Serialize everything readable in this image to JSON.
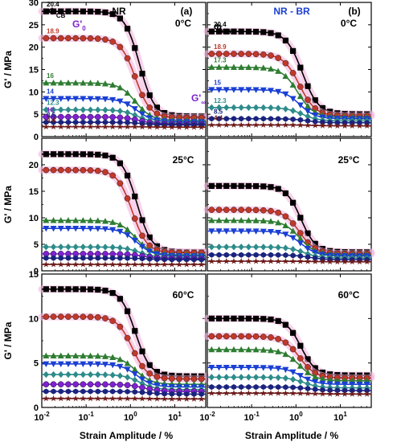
{
  "figure": {
    "y_axis_label": "G' / MPa",
    "x_axis_label": "Strain Amplitude / %",
    "column_titles": [
      "NR",
      "NR - BR"
    ],
    "panel_letters": [
      "(a)",
      "(b)"
    ],
    "phi_label": "Φ",
    "phi_sub": "CB",
    "g0_label": "G'",
    "g0_sub": "0",
    "ginf_label": "G'",
    "ginf_sub": "∞"
  },
  "chart_data": [
    {
      "type": "scatter",
      "panel": "NR 0°C",
      "temperature": "0°C",
      "x_scale": "log",
      "xlim": [
        0.01,
        50
      ],
      "ylim": [
        0,
        30
      ],
      "xticks": [
        "10-2",
        "10-1",
        "100",
        "101"
      ],
      "yticks": [
        0,
        5,
        10,
        15,
        20,
        25,
        30
      ],
      "series": [
        {
          "name": "20.4",
          "marker": "square",
          "color": "#000000",
          "g0": 28,
          "ginf": 4.5,
          "gc": 1.6,
          "m": 1.3
        },
        {
          "name": "18.9",
          "marker": "circle",
          "color": "#c0392b",
          "g0": 22,
          "ginf": 4.2,
          "gc": 1.3,
          "m": 1.3
        },
        {
          "name": "16",
          "marker": "triangle",
          "color": "#2e7d32",
          "g0": 12,
          "ginf": 3.6,
          "gc": 1.3,
          "m": 1.2
        },
        {
          "name": "14",
          "marker": "tri-down",
          "color": "#1a3fd4",
          "g0": 8.5,
          "ginf": 3.3,
          "gc": 1.4,
          "m": 1.2
        },
        {
          "name": "12.3",
          "marker": "diamond",
          "color": "#2e8b8b",
          "g0": 6,
          "ginf": 3.0,
          "gc": 1.5,
          "m": 1.2
        },
        {
          "name": "10",
          "marker": "circle",
          "color": "#7e22ce",
          "g0": 4.4,
          "ginf": 2.8,
          "gc": 1.6,
          "m": 1.2
        },
        {
          "name": "8.5",
          "marker": "hexagon",
          "color": "#1a237e",
          "g0": 3.2,
          "ginf": 2.6,
          "gc": 2.0,
          "m": 1.2
        },
        {
          "name": "4.4",
          "marker": "star",
          "color": "#6d1b1b",
          "g0": 2.2,
          "ginf": 2.1,
          "gc": 3.0,
          "m": 1.2
        }
      ]
    },
    {
      "type": "scatter",
      "panel": "NR-BR 0°C",
      "temperature": "0°C",
      "x_scale": "log",
      "xlim": [
        0.01,
        50
      ],
      "ylim": [
        0,
        30
      ],
      "xticks": [
        "10-2",
        "10-1",
        "100",
        "101"
      ],
      "yticks": [
        0,
        5,
        10,
        15,
        20,
        25,
        30
      ],
      "series": [
        {
          "name": "20.4",
          "marker": "square",
          "color": "#000000",
          "g0": 23.5,
          "ginf": 5.0,
          "gc": 1.4,
          "m": 1.2
        },
        {
          "name": "18.9",
          "marker": "circle",
          "color": "#c0392b",
          "g0": 18.5,
          "ginf": 4.6,
          "gc": 1.2,
          "m": 1.2
        },
        {
          "name": "17.3",
          "marker": "triangle",
          "color": "#2e7d32",
          "g0": 15.5,
          "ginf": 4.3,
          "gc": 1.1,
          "m": 1.2
        },
        {
          "name": "15",
          "marker": "tri-down",
          "color": "#1a3fd4",
          "g0": 10.5,
          "ginf": 4.0,
          "gc": 1.2,
          "m": 1.2
        },
        {
          "name": "12.3",
          "marker": "diamond",
          "color": "#2e8b8b",
          "g0": 6.5,
          "ginf": 3.5,
          "gc": 1.4,
          "m": 1.2
        },
        {
          "name": "8.5",
          "marker": "hexagon",
          "color": "#1a237e",
          "g0": 4.0,
          "ginf": 3.1,
          "gc": 1.8,
          "m": 1.2
        },
        {
          "name": "4.4",
          "marker": "star",
          "color": "#6d1b1b",
          "g0": 2.6,
          "ginf": 2.4,
          "gc": 2.5,
          "m": 1.2
        }
      ]
    },
    {
      "type": "scatter",
      "panel": "NR 25°C",
      "temperature": "25°C",
      "x_scale": "log",
      "xlim": [
        0.01,
        50
      ],
      "ylim": [
        0,
        25
      ],
      "xticks": [
        "10-2",
        "10-1",
        "100",
        "101"
      ],
      "yticks": [
        0,
        5,
        10,
        15,
        20
      ],
      "series": [
        {
          "name": "20.4",
          "marker": "square",
          "color": "#000000",
          "g0": 22,
          "ginf": 3.5,
          "gc": 1.4,
          "m": 1.3
        },
        {
          "name": "18.9",
          "marker": "circle",
          "color": "#c0392b",
          "g0": 19,
          "ginf": 3.4,
          "gc": 1.1,
          "m": 1.3
        },
        {
          "name": "16",
          "marker": "triangle",
          "color": "#2e7d32",
          "g0": 9.5,
          "ginf": 3.0,
          "gc": 1.3,
          "m": 1.2
        },
        {
          "name": "14",
          "marker": "tri-down",
          "color": "#1a3fd4",
          "g0": 8.0,
          "ginf": 2.8,
          "gc": 1.4,
          "m": 1.2
        },
        {
          "name": "12.3",
          "marker": "diamond",
          "color": "#2e8b8b",
          "g0": 4.5,
          "ginf": 2.5,
          "gc": 1.6,
          "m": 1.2
        },
        {
          "name": "10",
          "marker": "circle",
          "color": "#7e22ce",
          "g0": 3.2,
          "ginf": 2.3,
          "gc": 2.0,
          "m": 1.2
        },
        {
          "name": "8.5",
          "marker": "hexagon",
          "color": "#1a237e",
          "g0": 2.4,
          "ginf": 2.1,
          "gc": 2.5,
          "m": 1.2
        },
        {
          "name": "4.4",
          "marker": "star",
          "color": "#6d1b1b",
          "g0": 1.2,
          "ginf": 1.2,
          "gc": 3.0,
          "m": 1.2
        }
      ]
    },
    {
      "type": "scatter",
      "panel": "NR-BR 25°C",
      "temperature": "25°C",
      "x_scale": "log",
      "xlim": [
        0.01,
        50
      ],
      "ylim": [
        0,
        25
      ],
      "xticks": [
        "10-2",
        "10-1",
        "100",
        "101"
      ],
      "yticks": [
        0,
        5,
        10,
        15,
        20
      ],
      "series": [
        {
          "name": "20.4",
          "marker": "square",
          "color": "#000000",
          "g0": 16,
          "ginf": 3.5,
          "gc": 1.3,
          "m": 1.3
        },
        {
          "name": "18.9",
          "marker": "circle",
          "color": "#c0392b",
          "g0": 11.5,
          "ginf": 3.2,
          "gc": 1.2,
          "m": 1.2
        },
        {
          "name": "17.3",
          "marker": "triangle",
          "color": "#2e7d32",
          "g0": 9.5,
          "ginf": 3.0,
          "gc": 1.2,
          "m": 1.2
        },
        {
          "name": "15",
          "marker": "tri-down",
          "color": "#1a3fd4",
          "g0": 7.5,
          "ginf": 2.8,
          "gc": 1.3,
          "m": 1.2
        },
        {
          "name": "12.3",
          "marker": "diamond",
          "color": "#2e8b8b",
          "g0": 4.5,
          "ginf": 2.4,
          "gc": 1.5,
          "m": 1.2
        },
        {
          "name": "8.5",
          "marker": "hexagon",
          "color": "#1a237e",
          "g0": 3.0,
          "ginf": 2.1,
          "gc": 2.0,
          "m": 1.2
        },
        {
          "name": "4.4",
          "marker": "star",
          "color": "#6d1b1b",
          "g0": 1.8,
          "ginf": 1.7,
          "gc": 2.5,
          "m": 1.2
        }
      ]
    },
    {
      "type": "scatter",
      "panel": "NR 60°C",
      "temperature": "60°C",
      "x_scale": "log",
      "xlim": [
        0.01,
        50
      ],
      "ylim": [
        0,
        15
      ],
      "xticks": [
        "10-2",
        "10-1",
        "100",
        "101"
      ],
      "yticks": [
        0,
        5,
        10,
        15
      ],
      "series": [
        {
          "name": "20.4",
          "marker": "square",
          "color": "#000000",
          "g0": 13.3,
          "ginf": 3.5,
          "gc": 1.3,
          "m": 1.3
        },
        {
          "name": "18.9",
          "marker": "circle",
          "color": "#c0392b",
          "g0": 10.2,
          "ginf": 3.2,
          "gc": 1.1,
          "m": 1.3
        },
        {
          "name": "16",
          "marker": "triangle",
          "color": "#2e7d32",
          "g0": 5.8,
          "ginf": 2.6,
          "gc": 1.3,
          "m": 1.2
        },
        {
          "name": "14",
          "marker": "tri-down",
          "color": "#1a3fd4",
          "g0": 4.9,
          "ginf": 2.3,
          "gc": 1.4,
          "m": 1.2
        },
        {
          "name": "12.3",
          "marker": "diamond",
          "color": "#2e8b8b",
          "g0": 3.7,
          "ginf": 2.0,
          "gc": 1.6,
          "m": 1.2
        },
        {
          "name": "10",
          "marker": "circle",
          "color": "#7e22ce",
          "g0": 2.6,
          "ginf": 1.8,
          "gc": 2.0,
          "m": 1.2
        },
        {
          "name": "8.5",
          "marker": "hexagon",
          "color": "#1a237e",
          "g0": 1.8,
          "ginf": 1.5,
          "gc": 2.5,
          "m": 1.2
        },
        {
          "name": "4.4",
          "marker": "star",
          "color": "#6d1b1b",
          "g0": 1.0,
          "ginf": 0.95,
          "gc": 3.0,
          "m": 1.2
        }
      ]
    },
    {
      "type": "scatter",
      "panel": "NR-BR 60°C",
      "temperature": "60°C",
      "x_scale": "log",
      "xlim": [
        0.01,
        50
      ],
      "ylim": [
        0,
        15
      ],
      "xticks": [
        "10-2",
        "10-1",
        "100",
        "101"
      ],
      "yticks": [
        0,
        5,
        10,
        15
      ],
      "series": [
        {
          "name": "20.4",
          "marker": "square",
          "color": "#000000",
          "g0": 10.0,
          "ginf": 3.6,
          "gc": 1.3,
          "m": 1.3
        },
        {
          "name": "18.9",
          "marker": "circle",
          "color": "#c0392b",
          "g0": 8.0,
          "ginf": 3.3,
          "gc": 1.2,
          "m": 1.2
        },
        {
          "name": "17.3",
          "marker": "triangle",
          "color": "#2e7d32",
          "g0": 6.5,
          "ginf": 3.0,
          "gc": 1.2,
          "m": 1.2
        },
        {
          "name": "15",
          "marker": "tri-down",
          "color": "#1a3fd4",
          "g0": 4.5,
          "ginf": 2.6,
          "gc": 1.3,
          "m": 1.2
        },
        {
          "name": "12.3",
          "marker": "diamond",
          "color": "#2e8b8b",
          "g0": 3.4,
          "ginf": 2.2,
          "gc": 1.5,
          "m": 1.2
        },
        {
          "name": "8.5",
          "marker": "hexagon",
          "color": "#1a237e",
          "g0": 2.3,
          "ginf": 1.9,
          "gc": 2.0,
          "m": 1.2
        },
        {
          "name": "4.4",
          "marker": "star",
          "color": "#6d1b1b",
          "g0": 1.6,
          "ginf": 1.5,
          "gc": 2.5,
          "m": 1.2
        }
      ]
    }
  ]
}
